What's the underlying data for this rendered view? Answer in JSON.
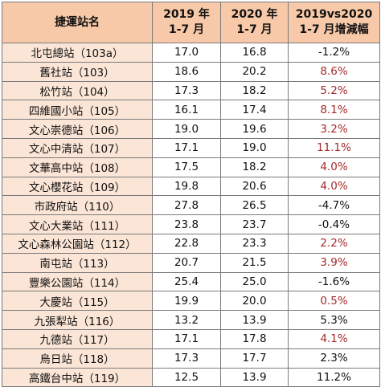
{
  "header": {
    "station": "捷運站名",
    "y2019_line1": "2019 年",
    "y2019_line2": "1-7 月",
    "y2020_line1": "2020 年",
    "y2020_line2": "1-7 月",
    "change_line1": "2019vs2020",
    "change_line2": "1-7 月增減幅"
  },
  "colors": {
    "header_bg": "#f8c9a8",
    "name_bg": "#fbe5d6",
    "positive_red": "#a52a2a"
  },
  "rows": [
    {
      "name": "北屯總站（103a）",
      "v2019": "17.0",
      "v2020": "16.8",
      "change": "-1.2%",
      "red": false
    },
    {
      "name": "舊社站（103）",
      "v2019": "18.6",
      "v2020": "20.2",
      "change": "8.6%",
      "red": true
    },
    {
      "name": "松竹站（104）",
      "v2019": "17.3",
      "v2020": "18.2",
      "change": "5.2%",
      "red": true
    },
    {
      "name": "四維國小站（105）",
      "v2019": "16.1",
      "v2020": "17.4",
      "change": "8.1%",
      "red": true
    },
    {
      "name": "文心崇德站（106）",
      "v2019": "19.0",
      "v2020": "19.6",
      "change": "3.2%",
      "red": true
    },
    {
      "name": "文心中清站（107）",
      "v2019": "17.1",
      "v2020": "19.0",
      "change": "11.1%",
      "red": true
    },
    {
      "name": "文華高中站（108）",
      "v2019": "17.5",
      "v2020": "18.2",
      "change": "4.0%",
      "red": true
    },
    {
      "name": "文心櫻花站（109）",
      "v2019": "19.8",
      "v2020": "20.6",
      "change": "4.0%",
      "red": true
    },
    {
      "name": "市政府站（110）",
      "v2019": "27.8",
      "v2020": "26.5",
      "change": "-4.7%",
      "red": false
    },
    {
      "name": "文心大業站（111）",
      "v2019": "23.8",
      "v2020": "23.7",
      "change": "-0.4%",
      "red": false
    },
    {
      "name": "文心森林公園站（112）",
      "v2019": "22.8",
      "v2020": "23.3",
      "change": "2.2%",
      "red": true
    },
    {
      "name": "南屯站（113）",
      "v2019": "20.7",
      "v2020": "21.5",
      "change": "3.9%",
      "red": true
    },
    {
      "name": "豐樂公園站（114）",
      "v2019": "25.4",
      "v2020": "25.0",
      "change": "-1.6%",
      "red": false
    },
    {
      "name": "大慶站（115）",
      "v2019": "19.9",
      "v2020": "20.0",
      "change": "0.5%",
      "red": true
    },
    {
      "name": "九張犁站（116）",
      "v2019": "13.2",
      "v2020": "13.9",
      "change": "5.3%",
      "red": false
    },
    {
      "name": "九德站（117）",
      "v2019": "17.1",
      "v2020": "17.8",
      "change": "4.1%",
      "red": true
    },
    {
      "name": "烏日站（118）",
      "v2019": "17.3",
      "v2020": "17.7",
      "change": "2.3%",
      "red": false
    },
    {
      "name": "高鐵台中站（119）",
      "v2019": "12.5",
      "v2020": "13.9",
      "change": "11.2%",
      "red": false
    }
  ]
}
